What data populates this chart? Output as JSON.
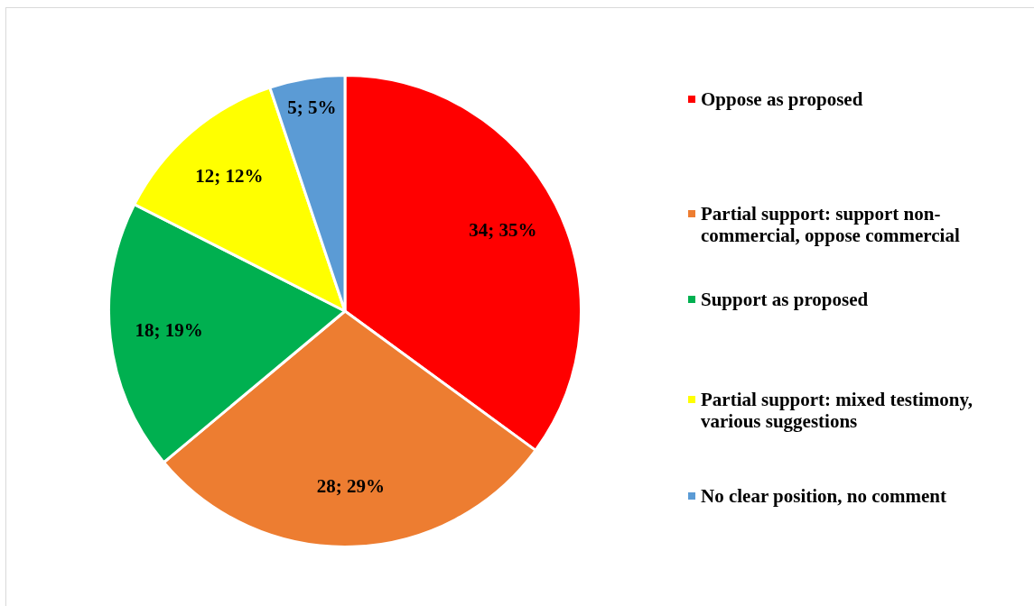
{
  "chart_data": {
    "type": "pie",
    "categories": [
      "Oppose as proposed",
      "Partial support: support non-commercial, oppose commercial",
      "Support as proposed",
      "Partial support: mixed testimony, various suggestions",
      "No clear position, no comment"
    ],
    "values": [
      34,
      28,
      18,
      12,
      5
    ],
    "colors": [
      "#ff0000",
      "#ed7d31",
      "#00b050",
      "#ffff00",
      "#5b9bd5"
    ],
    "value_labels": [
      "34; 35%",
      "28; 29%",
      "18; 19%",
      "12; 12%",
      "5; 5%"
    ],
    "legend": "right"
  }
}
